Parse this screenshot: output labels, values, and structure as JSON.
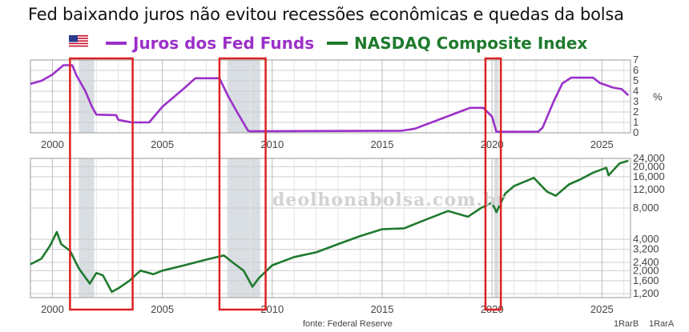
{
  "title": "Fed baixando juros não evitou recessões econômicas e quedas da bolsa",
  "legend": {
    "flag_icon": "us-flag-icon",
    "fed_funds_label": "Juros dos Fed Funds",
    "nasdaq_label": "NASDAQ Composite Index"
  },
  "colors": {
    "fed_funds": "#9b30c8",
    "nasdaq": "#1f7a2e",
    "recession_shade": "#d9dee3",
    "highlight_box": "#dd2222",
    "grid": "#cccccc"
  },
  "watermark": "deolhonabolsa.com.br",
  "source": "fonte: Federal Reserve",
  "footer_codes": [
    "1RarB",
    "1RarA"
  ],
  "chart_data": [
    {
      "type": "line",
      "title": "",
      "xlabel": "",
      "ylabel": "%",
      "x_ticks": [
        "2000",
        "2005",
        "2010",
        "2015",
        "2020",
        "2025"
      ],
      "y_ticks": [
        "0",
        "1",
        "2",
        "3",
        "4",
        "5",
        "6",
        "7"
      ],
      "xlim": [
        1999,
        2026.3
      ],
      "ylim": [
        0,
        7
      ],
      "grid": true,
      "series": [
        {
          "name": "Juros dos Fed Funds",
          "points": [
            [
              1999.0,
              4.7
            ],
            [
              1999.5,
              5.0
            ],
            [
              2000.0,
              5.6
            ],
            [
              2000.5,
              6.5
            ],
            [
              2000.9,
              6.5
            ],
            [
              2001.1,
              5.5
            ],
            [
              2001.5,
              4.0
            ],
            [
              2001.8,
              2.5
            ],
            [
              2002.0,
              1.75
            ],
            [
              2002.9,
              1.7
            ],
            [
              2003.0,
              1.25
            ],
            [
              2003.6,
              1.0
            ],
            [
              2004.4,
              1.0
            ],
            [
              2005.0,
              2.5
            ],
            [
              2006.0,
              4.3
            ],
            [
              2006.5,
              5.25
            ],
            [
              2007.6,
              5.25
            ],
            [
              2008.0,
              3.5
            ],
            [
              2008.4,
              2.0
            ],
            [
              2008.9,
              0.2
            ],
            [
              2009.0,
              0.15
            ],
            [
              2015.9,
              0.2
            ],
            [
              2016.5,
              0.4
            ],
            [
              2017.5,
              1.2
            ],
            [
              2018.5,
              2.0
            ],
            [
              2019.0,
              2.4
            ],
            [
              2019.6,
              2.4
            ],
            [
              2020.0,
              1.55
            ],
            [
              2020.2,
              0.1
            ],
            [
              2022.1,
              0.1
            ],
            [
              2022.3,
              0.5
            ],
            [
              2022.8,
              3.0
            ],
            [
              2023.2,
              4.75
            ],
            [
              2023.6,
              5.3
            ],
            [
              2024.6,
              5.3
            ],
            [
              2024.9,
              4.8
            ],
            [
              2025.5,
              4.35
            ],
            [
              2025.9,
              4.2
            ],
            [
              2026.2,
              3.6
            ]
          ]
        }
      ],
      "recessions": [
        [
          2001.2,
          2001.9
        ],
        [
          2007.95,
          2009.45
        ],
        [
          2020.1,
          2020.3
        ]
      ],
      "highlights": [
        [
          2000.8,
          2003.65
        ],
        [
          2007.6,
          2009.7
        ],
        [
          2019.7,
          2020.4
        ]
      ]
    },
    {
      "type": "line",
      "title": "",
      "xlabel": "",
      "ylabel": "",
      "y_scale": "log",
      "x_ticks": [
        "2000",
        "2005",
        "2010",
        "2015",
        "2020",
        "2025"
      ],
      "y_ticks": [
        "1,200",
        "1,600",
        "2,000",
        "2,400",
        "3,200",
        "4,000",
        "8,000",
        "12,000",
        "16,000",
        "20,000",
        "24,000"
      ],
      "xlim": [
        1999,
        2026.3
      ],
      "ylim": [
        1100,
        24000
      ],
      "grid": true,
      "series": [
        {
          "name": "NASDAQ Composite Index",
          "points": [
            [
              1999.0,
              2300
            ],
            [
              1999.5,
              2600
            ],
            [
              1999.9,
              3500
            ],
            [
              2000.2,
              4700
            ],
            [
              2000.4,
              3600
            ],
            [
              2000.8,
              3100
            ],
            [
              2001.2,
              2100
            ],
            [
              2001.7,
              1500
            ],
            [
              2002.0,
              1900
            ],
            [
              2002.3,
              1800
            ],
            [
              2002.7,
              1250
            ],
            [
              2003.0,
              1350
            ],
            [
              2003.5,
              1600
            ],
            [
              2004.0,
              2000
            ],
            [
              2004.6,
              1850
            ],
            [
              2005.0,
              2000
            ],
            [
              2006.0,
              2250
            ],
            [
              2007.0,
              2550
            ],
            [
              2007.8,
              2800
            ],
            [
              2008.2,
              2400
            ],
            [
              2008.7,
              2000
            ],
            [
              2009.1,
              1400
            ],
            [
              2009.4,
              1700
            ],
            [
              2010.0,
              2250
            ],
            [
              2011.0,
              2700
            ],
            [
              2012.0,
              3000
            ],
            [
              2013.0,
              3600
            ],
            [
              2014.0,
              4300
            ],
            [
              2015.0,
              5000
            ],
            [
              2016.0,
              5100
            ],
            [
              2017.0,
              6200
            ],
            [
              2018.0,
              7500
            ],
            [
              2018.9,
              6600
            ],
            [
              2019.5,
              8000
            ],
            [
              2020.0,
              9000
            ],
            [
              2020.2,
              7300
            ],
            [
              2020.6,
              11000
            ],
            [
              2021.0,
              13000
            ],
            [
              2021.9,
              15600
            ],
            [
              2022.5,
              11500
            ],
            [
              2022.9,
              10500
            ],
            [
              2023.5,
              13500
            ],
            [
              2024.0,
              15000
            ],
            [
              2024.6,
              17500
            ],
            [
              2025.2,
              19500
            ],
            [
              2025.3,
              16500
            ],
            [
              2025.8,
              21500
            ],
            [
              2026.2,
              22800
            ]
          ]
        }
      ],
      "recessions": [
        [
          2001.2,
          2001.9
        ],
        [
          2007.95,
          2009.45
        ],
        [
          2020.1,
          2020.3
        ]
      ],
      "highlights": [
        [
          2000.8,
          2003.65
        ],
        [
          2007.6,
          2009.7
        ],
        [
          2019.7,
          2020.4
        ]
      ]
    }
  ]
}
